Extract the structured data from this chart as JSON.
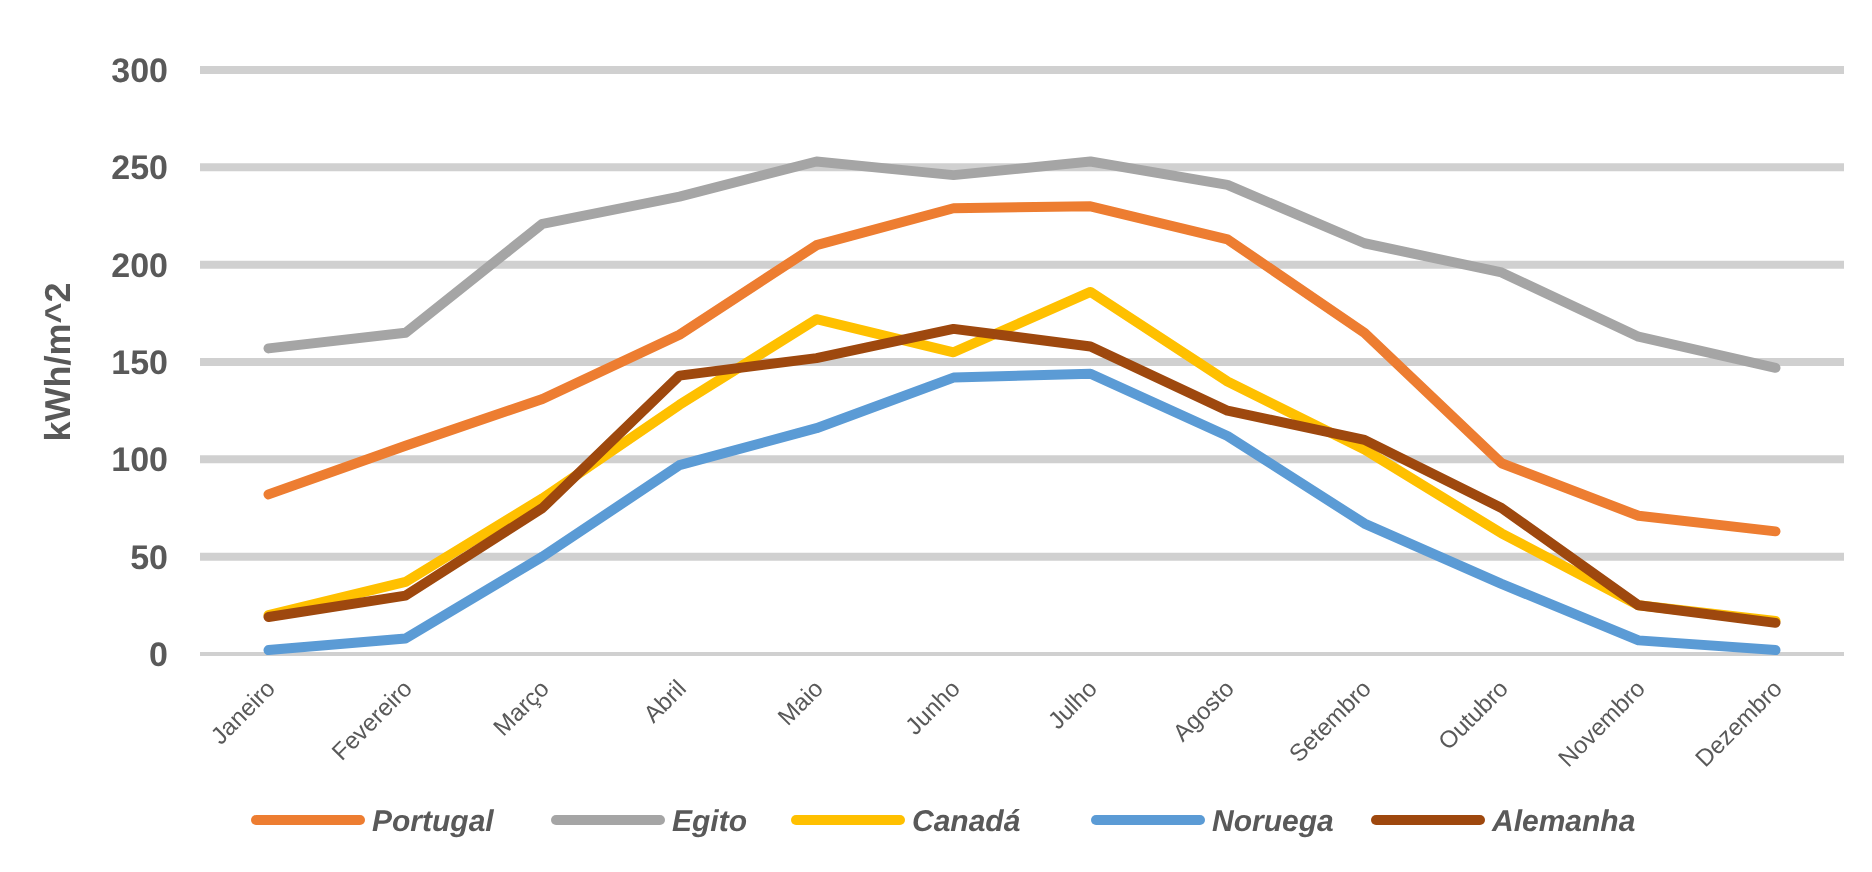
{
  "chart_data": {
    "type": "line",
    "ylabel": "kWh/m^2",
    "categories": [
      "Janeiro",
      "Fevereiro",
      "Março",
      "Abril",
      "Maio",
      "Junho",
      "Julho",
      "Agosto",
      "Setembro",
      "Outubro",
      "Novembro",
      "Dezembro"
    ],
    "series": [
      {
        "name": "Portugal",
        "color": "#ed7d31",
        "values": [
          82,
          107,
          131,
          164,
          210,
          229,
          230,
          213,
          165,
          98,
          71,
          63
        ]
      },
      {
        "name": "Egito",
        "color": "#a5a5a5",
        "values": [
          157,
          165,
          221,
          235,
          253,
          246,
          253,
          241,
          211,
          196,
          163,
          147
        ]
      },
      {
        "name": "Canadá",
        "color": "#ffc000",
        "values": [
          20,
          37,
          80,
          128,
          172,
          155,
          186,
          140,
          105,
          62,
          25,
          17
        ]
      },
      {
        "name": "Noruega",
        "color": "#5b9bd5",
        "values": [
          2,
          8,
          50,
          97,
          116,
          142,
          144,
          112,
          67,
          36,
          7,
          2
        ]
      },
      {
        "name": "Alemanha",
        "color": "#9e480e",
        "values": [
          19,
          30,
          75,
          143,
          152,
          167,
          158,
          125,
          110,
          75,
          25,
          16
        ]
      }
    ],
    "ylim": [
      0,
      300
    ],
    "yticks": [
      0,
      50,
      100,
      150,
      200,
      250,
      300
    ],
    "grid": "y",
    "legend": "bottom",
    "marker": "none",
    "line_style": "solid"
  }
}
